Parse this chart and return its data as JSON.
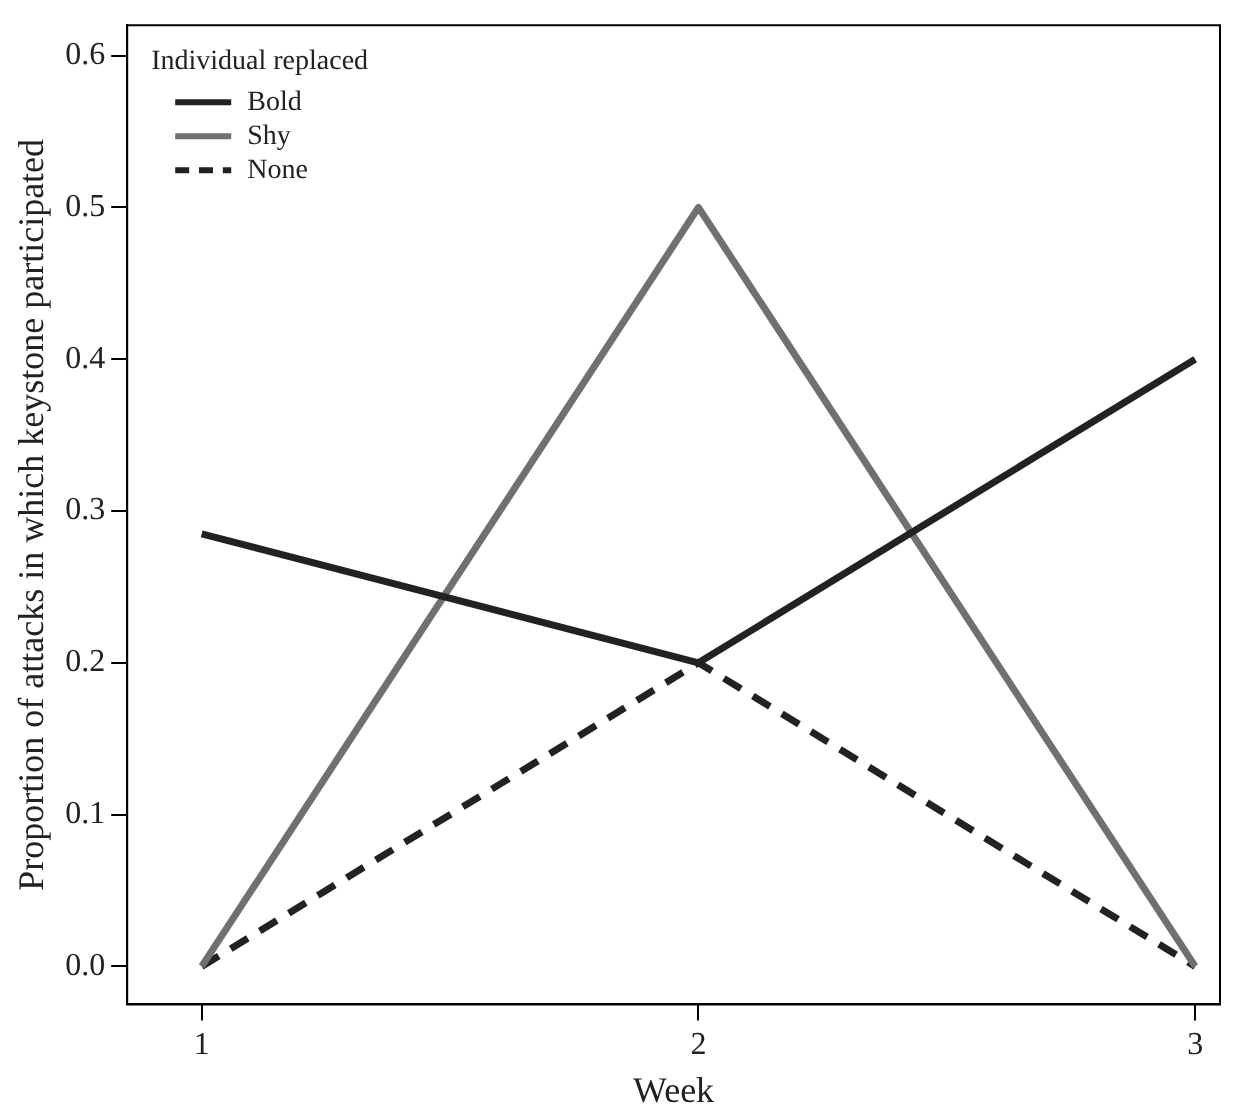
{
  "chart_data": {
    "type": "line",
    "xlabel": "Week",
    "ylabel": "Proportion of attacks in which keystone participated",
    "x": [
      1,
      2,
      3
    ],
    "xlim": [
      0.85,
      3.05
    ],
    "xticks": [
      1,
      2,
      3
    ],
    "ylim": [
      -0.025,
      0.62
    ],
    "yticks": [
      {
        "value": 0,
        "label": "0.0"
      },
      0.1,
      0.2,
      0.3,
      0.4,
      0.5,
      0.6
    ],
    "grid": false,
    "legend": "top left",
    "legend_title": "Individual replaced",
    "marker": "none",
    "series": [
      {
        "name": "Bold",
        "color": "#222222",
        "values": [
          0.285,
          0.2,
          0.4
        ],
        "line_style": "solid"
      },
      {
        "name": "Shy",
        "color": "#707070",
        "values": [
          0,
          0.5,
          0
        ],
        "line_style": "solid"
      },
      {
        "name": "None",
        "color": "#222222",
        "values": [
          0,
          0.2,
          0
        ],
        "line_style": "dashed"
      }
    ]
  }
}
